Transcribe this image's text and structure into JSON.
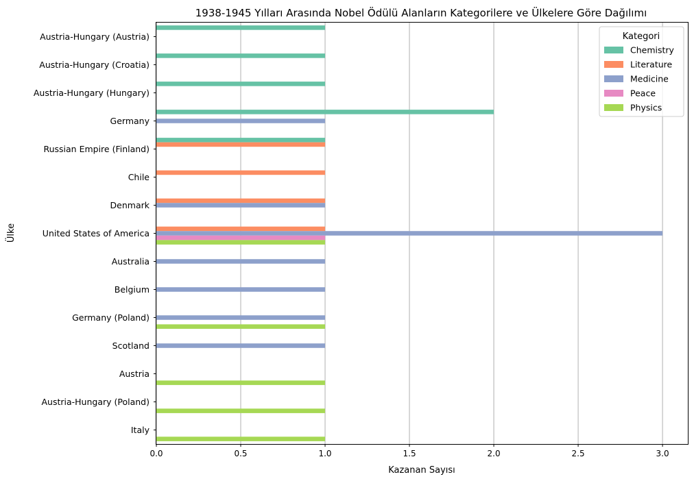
{
  "chart_data": {
    "type": "bar",
    "orientation": "horizontal",
    "title": "1938-1945 Yılları Arasında Nobel Ödülü Alanların Kategorilere ve Ülkelere Göre Dağılımı",
    "xlabel": "Kazanan Sayısı",
    "ylabel": "Ülke",
    "xlim": [
      0,
      3.15
    ],
    "xticks": [
      "0.0",
      "0.5",
      "1.0",
      "1.5",
      "2.0",
      "2.5",
      "3.0"
    ],
    "grid": "vertical",
    "legend_position": "top-right",
    "legend_title": "Kategori",
    "categories": [
      "Austria-Hungary (Austria)",
      "Austria-Hungary (Croatia)",
      "Austria-Hungary (Hungary)",
      "Germany",
      "Russian Empire (Finland)",
      "Chile",
      "Denmark",
      "United States of America",
      "Australia",
      "Belgium",
      "Germany (Poland)",
      "Scotland",
      "Austria",
      "Austria-Hungary (Poland)",
      "Italy"
    ],
    "series": [
      {
        "name": "Chemistry",
        "color": "#66c2a5",
        "values": [
          1,
          1,
          1,
          2,
          1,
          0,
          0,
          0,
          0,
          0,
          0,
          0,
          0,
          0,
          0
        ]
      },
      {
        "name": "Literature",
        "color": "#fc8d62",
        "values": [
          0,
          0,
          0,
          0,
          1,
          1,
          1,
          1,
          0,
          0,
          0,
          0,
          0,
          0,
          0
        ]
      },
      {
        "name": "Medicine",
        "color": "#8da0cb",
        "values": [
          0,
          0,
          0,
          1,
          0,
          0,
          1,
          3,
          1,
          1,
          1,
          1,
          0,
          0,
          0
        ]
      },
      {
        "name": "Peace",
        "color": "#e78ac3",
        "values": [
          0,
          0,
          0,
          0,
          0,
          0,
          0,
          1,
          0,
          0,
          0,
          0,
          0,
          0,
          0
        ]
      },
      {
        "name": "Physics",
        "color": "#a6d854",
        "values": [
          0,
          0,
          0,
          0,
          0,
          0,
          0,
          1,
          0,
          0,
          1,
          0,
          1,
          1,
          1
        ]
      }
    ]
  }
}
